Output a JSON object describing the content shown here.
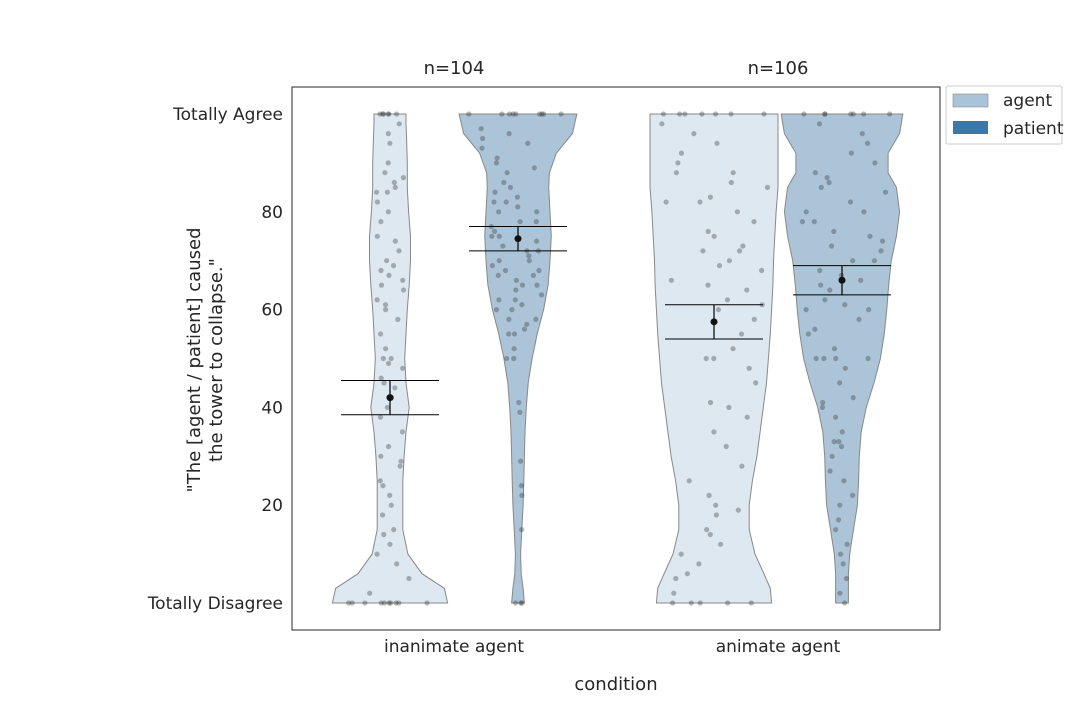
{
  "chart_data": {
    "type": "violin",
    "title": "",
    "xlabel": "condition",
    "ylabel_lines": [
      "\"The [agent / patient] caused",
      "the tower to collapse.\""
    ],
    "ylim": [
      -5,
      105
    ],
    "yticks": [
      {
        "value": 0,
        "label": "Totally Disagree"
      },
      {
        "value": 20,
        "label": "20"
      },
      {
        "value": 40,
        "label": "40"
      },
      {
        "value": 60,
        "label": "60"
      },
      {
        "value": 80,
        "label": "80"
      },
      {
        "value": 100,
        "label": "Totally Agree"
      }
    ],
    "categories": [
      "inanimate agent",
      "animate agent"
    ],
    "group_counts": [
      "n=104",
      "n=106"
    ],
    "legend": {
      "placement": "outside top-right",
      "entries": [
        {
          "name": "agent",
          "color": "#a9c4d9"
        },
        {
          "name": "patient",
          "color": "#3a78a8"
        }
      ]
    },
    "violin_colors": {
      "agent": "#dde8f0",
      "patient": "#abc4d8",
      "edge": "#888888"
    },
    "violins": [
      {
        "category": "inanimate agent",
        "hue": "agent",
        "mean": 42,
        "ci": [
          38.5,
          45.5
        ],
        "profile": [
          [
            0,
            0.9
          ],
          [
            3,
            0.85
          ],
          [
            6,
            0.5
          ],
          [
            10,
            0.28
          ],
          [
            15,
            0.2
          ],
          [
            20,
            0.2
          ],
          [
            25,
            0.2
          ],
          [
            30,
            0.22
          ],
          [
            35,
            0.25
          ],
          [
            40,
            0.3
          ],
          [
            45,
            0.25
          ],
          [
            50,
            0.23
          ],
          [
            55,
            0.25
          ],
          [
            60,
            0.27
          ],
          [
            65,
            0.3
          ],
          [
            70,
            0.32
          ],
          [
            75,
            0.32
          ],
          [
            80,
            0.29
          ],
          [
            85,
            0.27
          ],
          [
            90,
            0.27
          ],
          [
            95,
            0.26
          ],
          [
            98,
            0.25
          ],
          [
            100,
            0.25
          ]
        ],
        "points": [
          0,
          0,
          0,
          0,
          0,
          0,
          0,
          0,
          0,
          0,
          2,
          5,
          8,
          10,
          12,
          14,
          15,
          18,
          20,
          22,
          24,
          25,
          28,
          29,
          30,
          32,
          35,
          38,
          40,
          42,
          44,
          45,
          46,
          48,
          49,
          50,
          50,
          52,
          55,
          58,
          60,
          61,
          62,
          64,
          65,
          66,
          67,
          68,
          69,
          70,
          72,
          74,
          75,
          78,
          80,
          82,
          84,
          84,
          85,
          86,
          87,
          88,
          90,
          94,
          96,
          98,
          100,
          100,
          100,
          100,
          100,
          100
        ]
      },
      {
        "category": "inanimate agent",
        "hue": "patient",
        "mean": 74.5,
        "ci": [
          72,
          77
        ],
        "profile": [
          [
            0,
            0.1
          ],
          [
            3,
            0.08
          ],
          [
            6,
            0.05
          ],
          [
            10,
            0.04
          ],
          [
            15,
            0.06
          ],
          [
            20,
            0.08
          ],
          [
            25,
            0.09
          ],
          [
            30,
            0.1
          ],
          [
            35,
            0.11
          ],
          [
            40,
            0.13
          ],
          [
            45,
            0.16
          ],
          [
            50,
            0.22
          ],
          [
            55,
            0.3
          ],
          [
            60,
            0.4
          ],
          [
            65,
            0.47
          ],
          [
            70,
            0.5
          ],
          [
            75,
            0.52
          ],
          [
            80,
            0.5
          ],
          [
            85,
            0.48
          ],
          [
            88,
            0.49
          ],
          [
            92,
            0.6
          ],
          [
            96,
            0.85
          ],
          [
            100,
            0.92
          ]
        ],
        "points": [
          0,
          0,
          0,
          15,
          22,
          24,
          29,
          39,
          41,
          50,
          50,
          52,
          55,
          55,
          56,
          57,
          58,
          58,
          60,
          60,
          61,
          62,
          62,
          63,
          64,
          65,
          65,
          66,
          67,
          67,
          68,
          68,
          69,
          70,
          70,
          71,
          72,
          72,
          73,
          74,
          75,
          75,
          76,
          77,
          78,
          78,
          80,
          80,
          81,
          82,
          82,
          83,
          84,
          85,
          86,
          88,
          89,
          90,
          91,
          93,
          94,
          95,
          96,
          97,
          100,
          100,
          100,
          100,
          100,
          100,
          100,
          100,
          100
        ]
      },
      {
        "category": "animate agent",
        "hue": "agent",
        "mean": 57.5,
        "ci": [
          54,
          61
        ],
        "profile": [
          [
            0,
            0.9
          ],
          [
            3,
            0.88
          ],
          [
            6,
            0.78
          ],
          [
            10,
            0.64
          ],
          [
            15,
            0.55
          ],
          [
            20,
            0.55
          ],
          [
            25,
            0.6
          ],
          [
            30,
            0.67
          ],
          [
            35,
            0.72
          ],
          [
            40,
            0.77
          ],
          [
            45,
            0.82
          ],
          [
            50,
            0.85
          ],
          [
            55,
            0.88
          ],
          [
            60,
            0.9
          ],
          [
            65,
            0.92
          ],
          [
            70,
            0.93
          ],
          [
            75,
            0.95
          ],
          [
            80,
            0.97
          ],
          [
            85,
            1
          ],
          [
            90,
            1
          ],
          [
            95,
            1
          ],
          [
            98,
            1
          ],
          [
            100,
            1
          ]
        ],
        "points": [
          0,
          0,
          0,
          0,
          0,
          2,
          5,
          6,
          8,
          10,
          12,
          14,
          15,
          18,
          19,
          20,
          22,
          25,
          28,
          32,
          35,
          38,
          40,
          41,
          45,
          48,
          50,
          50,
          52,
          55,
          58,
          60,
          61,
          62,
          64,
          65,
          66,
          68,
          69,
          70,
          72,
          72,
          73,
          75,
          76,
          78,
          80,
          82,
          82,
          83,
          85,
          86,
          88,
          88,
          90,
          92,
          94,
          96,
          98,
          100,
          100,
          100,
          100,
          100,
          100,
          100
        ]
      },
      {
        "category": "animate agent",
        "hue": "patient",
        "mean": 66,
        "ci": [
          63,
          69
        ],
        "profile": [
          [
            0,
            0.1
          ],
          [
            3,
            0.1
          ],
          [
            6,
            0.1
          ],
          [
            10,
            0.12
          ],
          [
            15,
            0.18
          ],
          [
            20,
            0.24
          ],
          [
            25,
            0.26
          ],
          [
            30,
            0.27
          ],
          [
            35,
            0.3
          ],
          [
            40,
            0.38
          ],
          [
            45,
            0.5
          ],
          [
            50,
            0.6
          ],
          [
            55,
            0.66
          ],
          [
            60,
            0.7
          ],
          [
            65,
            0.73
          ],
          [
            70,
            0.77
          ],
          [
            75,
            0.85
          ],
          [
            80,
            0.9
          ],
          [
            85,
            0.85
          ],
          [
            88,
            0.72
          ],
          [
            92,
            0.72
          ],
          [
            96,
            0.9
          ],
          [
            100,
            0.95
          ]
        ],
        "points": [
          0,
          2,
          5,
          8,
          10,
          12,
          15,
          17,
          20,
          22,
          25,
          27,
          30,
          32,
          33,
          33,
          35,
          38,
          40,
          41,
          42,
          45,
          48,
          50,
          50,
          50,
          50,
          52,
          55,
          56,
          58,
          60,
          60,
          61,
          62,
          64,
          65,
          66,
          67,
          68,
          70,
          70,
          72,
          73,
          74,
          75,
          76,
          78,
          78,
          80,
          80,
          82,
          84,
          85,
          86,
          87,
          88,
          90,
          92,
          94,
          96,
          98,
          100,
          100,
          100,
          100,
          100,
          100,
          100
        ]
      }
    ]
  }
}
